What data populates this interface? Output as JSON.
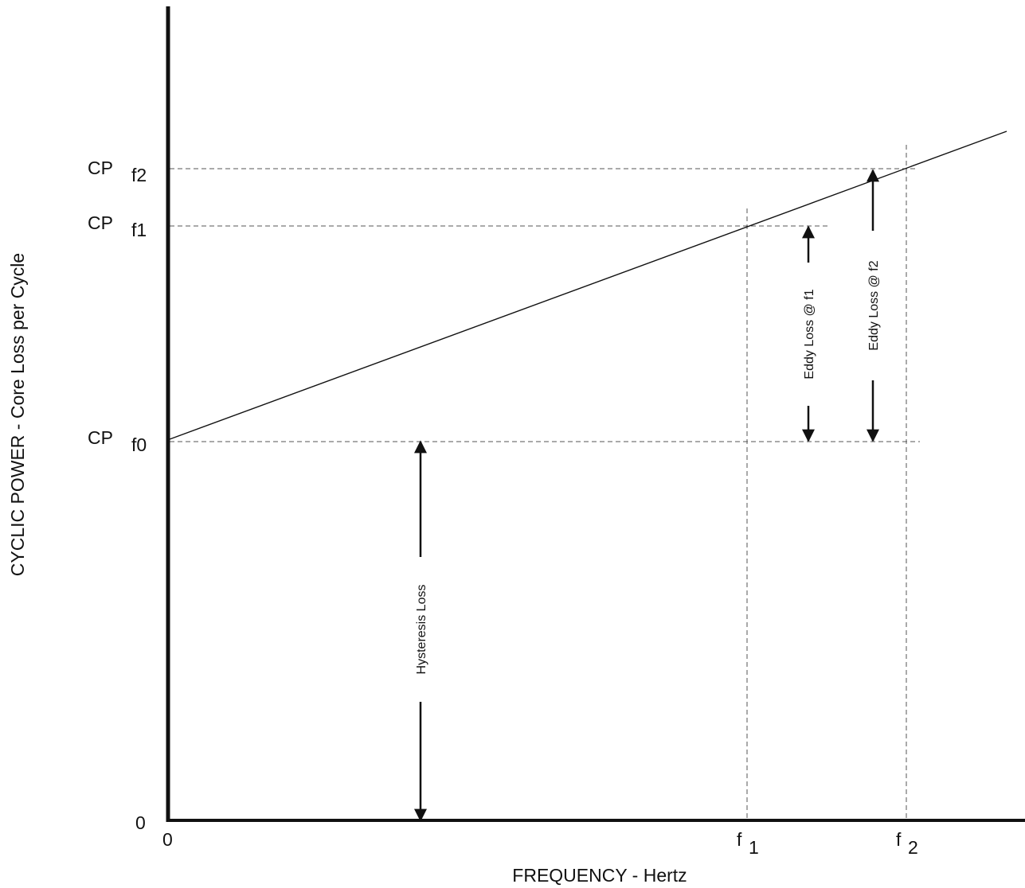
{
  "chart_data": {
    "type": "line",
    "title": "",
    "xlabel": "FREQUENCY - Hertz",
    "ylabel": "CYCLIC POWER - Core Loss per Cycle",
    "grid": false,
    "x_ticks": [
      {
        "main": "0",
        "sub": ""
      },
      {
        "main": "f",
        "sub": "1"
      },
      {
        "main": "f",
        "sub": "2"
      }
    ],
    "y_ticks": [
      {
        "main": "0",
        "sub": ""
      },
      {
        "main": "CP",
        "sub": "f0"
      },
      {
        "main": "CP",
        "sub": "f1"
      },
      {
        "main": "CP",
        "sub": "f2"
      }
    ],
    "series": [
      {
        "x": [
          "0",
          "f1",
          "f2"
        ],
        "y": [
          "CP f0",
          "CP f1",
          "CP f2"
        ]
      }
    ],
    "annotations": [
      {
        "label": "Hysteresis Loss",
        "from": "0",
        "to": "CP f0"
      },
      {
        "label": "Eddy Loss @ f1",
        "from": "CP f0",
        "to": "CP f1",
        "at": "f1"
      },
      {
        "label": "Eddy Loss @ f2",
        "from": "CP f0",
        "to": "CP f2",
        "at": "f2"
      }
    ],
    "colors": {
      "ink": "#111111",
      "guide": "#555555"
    }
  }
}
